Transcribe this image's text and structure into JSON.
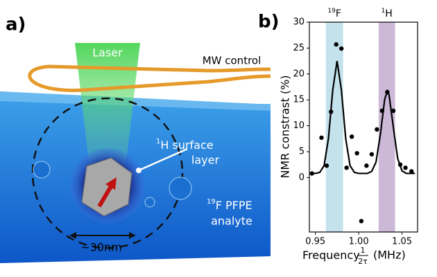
{
  "panel_a": {
    "label": "a)",
    "laser": "Laser",
    "mw": "MW control",
    "surface_sup": "1",
    "surface": "H surface",
    "surface2": "layer",
    "analyte_sup": "19",
    "analyte": "F PFPE",
    "analyte2": "analyte",
    "scale": "~30nm"
  },
  "chart_data": {
    "type": "scatter",
    "panel_label": "b)",
    "xlabel": "Frequency",
    "xlabel_num": "1",
    "xlabel_den": "2τ",
    "xlabel_unit": "(MHz)",
    "ylabel": "NMR constrast (%)",
    "xlim": [
      0.943,
      1.068
    ],
    "ylim": [
      -10.5,
      30
    ],
    "xticks": [
      {
        "value": 0.95,
        "label": "0.95"
      },
      {
        "value": 1,
        "label": "1.00"
      },
      {
        "value": 1.05,
        "label": "1.05"
      }
    ],
    "yticks": [
      0,
      5,
      10,
      15,
      20,
      25,
      30
    ],
    "bands": [
      {
        "sup": "19",
        "label": "F",
        "x": [
          0.962,
          0.982
        ],
        "color": "#c4e2ec"
      },
      {
        "sup": "1",
        "label": "H",
        "x": [
          1.023,
          1.042
        ],
        "color": "#cbb9d7"
      }
    ],
    "series": [
      {
        "type": "scatter",
        "color": "#000000",
        "x": [
          0.946,
          0.957,
          0.963,
          0.968,
          0.974,
          0.98,
          0.986,
          0.992,
          0.998,
          1.003,
          1.009,
          1.015,
          1.021,
          1.027,
          1.033,
          1.04,
          1.048,
          1.054,
          1.061
        ],
        "values": [
          0.8,
          7.7,
          2.3,
          12.7,
          25.7,
          24.9,
          1.9,
          7.9,
          4.7,
          -8.4,
          2.3,
          4.5,
          9.3,
          12.9,
          16.5,
          12.9,
          2.5,
          1.9,
          1.2
        ]
      },
      {
        "type": "line",
        "color": "#000000",
        "x": [
          0.945,
          0.95,
          0.955,
          0.96,
          0.965,
          0.97,
          0.975,
          0.98,
          0.985,
          0.99,
          0.995,
          1,
          1.005,
          1.01,
          1.015,
          1.02,
          1.025,
          1.03,
          1.033,
          1.035,
          1.04,
          1.045,
          1.05,
          1.055,
          1.06,
          1.065
        ],
        "values": [
          0.8,
          0.8,
          1.0,
          2.3,
          7.5,
          16.9,
          22.5,
          16.9,
          7.5,
          2.3,
          1.0,
          0.8,
          0.8,
          0.8,
          1.2,
          3.0,
          8.3,
          15.1,
          16.7,
          16.0,
          9.7,
          3.7,
          1.3,
          0.8,
          0.8,
          0.8
        ]
      }
    ]
  }
}
